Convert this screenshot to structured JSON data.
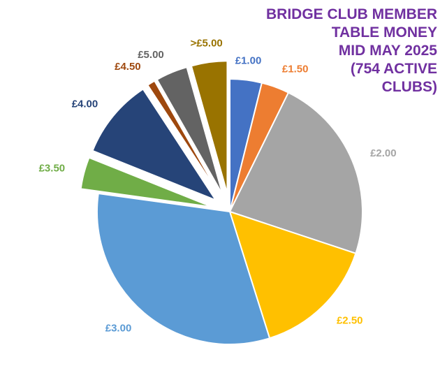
{
  "chart_data": {
    "type": "pie",
    "title_lines": [
      "BRIDGE CLUB MEMBER",
      "TABLE MONEY",
      "MID MAY 2025",
      "(754 ACTIVE",
      "CLUBS)"
    ],
    "slices": [
      {
        "label": "£1.00",
        "value": 4.0,
        "color": "#4472C4",
        "exploded": false
      },
      {
        "label": "£1.50",
        "value": 3.5,
        "color": "#ED7D31",
        "exploded": false
      },
      {
        "label": "£2.00",
        "value": 23.5,
        "color": "#A5A5A5",
        "exploded": false
      },
      {
        "label": "£2.50",
        "value": 15.5,
        "color": "#FFC000",
        "exploded": false
      },
      {
        "label": "£3.00",
        "value": 33.0,
        "color": "#5B9BD5",
        "exploded": false
      },
      {
        "label": "£3.50",
        "value": 4.0,
        "color": "#70AD47",
        "exploded": true
      },
      {
        "label": "£4.00",
        "value": 10.0,
        "color": "#264478",
        "exploded": true
      },
      {
        "label": "£4.50",
        "value": 1.0,
        "color": "#9E480E",
        "exploded": true
      },
      {
        "label": "£5.00",
        "value": 4.0,
        "color": "#636363",
        "exploded": true
      },
      {
        "label": ">£5.00",
        "value": 4.5,
        "color": "#997300",
        "exploded": true
      }
    ]
  }
}
